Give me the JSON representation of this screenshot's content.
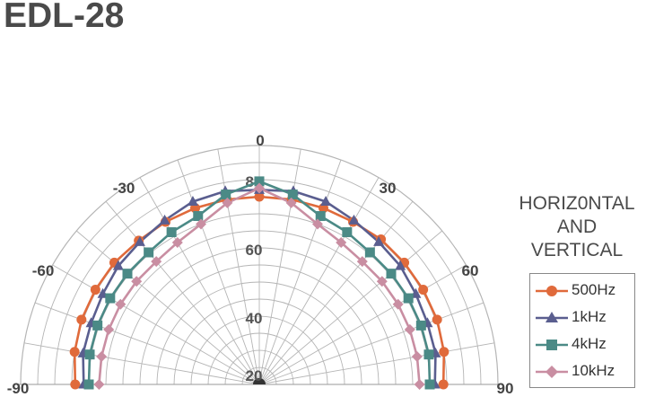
{
  "title": "EDL-28",
  "legend": {
    "title_lines": [
      "HORIZ0NTAL",
      "AND",
      "VERTICAL"
    ],
    "entries": [
      "500Hz",
      "1kHz",
      "4kHz",
      "10kHz"
    ]
  },
  "chart_data": {
    "type": "polar-line",
    "title": "EDL-28",
    "angle_range": [
      -90,
      90
    ],
    "angle_ticks": [
      "-90",
      "-60",
      "-30",
      "0",
      "30",
      "60",
      "90"
    ],
    "radial_range": [
      20,
      80
    ],
    "radial_ticks": [
      "20",
      "40",
      "60",
      "80"
    ],
    "grid": true,
    "legend_placement": "right",
    "angles": [
      -90,
      -80,
      -70,
      -60,
      -50,
      -40,
      -30,
      -20,
      -10,
      0,
      10,
      20,
      30,
      40,
      50,
      60,
      70,
      80,
      90
    ],
    "series": [
      {
        "name": "500Hz",
        "color": "#e06a3b",
        "marker": "circle",
        "values": [
          74,
          75,
          75.5,
          75.5,
          75.5,
          75,
          75,
          75,
          75,
          75,
          75,
          75,
          75,
          75.5,
          75.5,
          75.5,
          75.5,
          75,
          74
        ]
      },
      {
        "name": "1kHz",
        "color": "#5a5e8f",
        "marker": "triangle",
        "values": [
          71.5,
          72.5,
          72.5,
          73,
          74,
          74.5,
          75.5,
          77,
          77.5,
          77,
          77.5,
          77,
          75.5,
          74.5,
          74,
          73,
          72.5,
          72.5,
          71.5
        ]
      },
      {
        "name": "4kHz",
        "color": "#4b8a86",
        "marker": "square",
        "values": [
          70,
          70.5,
          70.5,
          70.5,
          70.5,
          70.5,
          71.5,
          72.5,
          76.5,
          79.5,
          76.5,
          72.5,
          71.5,
          70.5,
          70.5,
          70.5,
          70.5,
          70.5,
          70
        ]
      },
      {
        "name": "10kHz",
        "color": "#c98ea2",
        "marker": "diamond",
        "values": [
          67,
          67,
          67,
          67,
          67,
          67,
          68,
          70,
          74,
          77.5,
          74,
          70,
          68,
          67,
          67,
          67,
          67,
          67,
          67
        ]
      }
    ]
  }
}
